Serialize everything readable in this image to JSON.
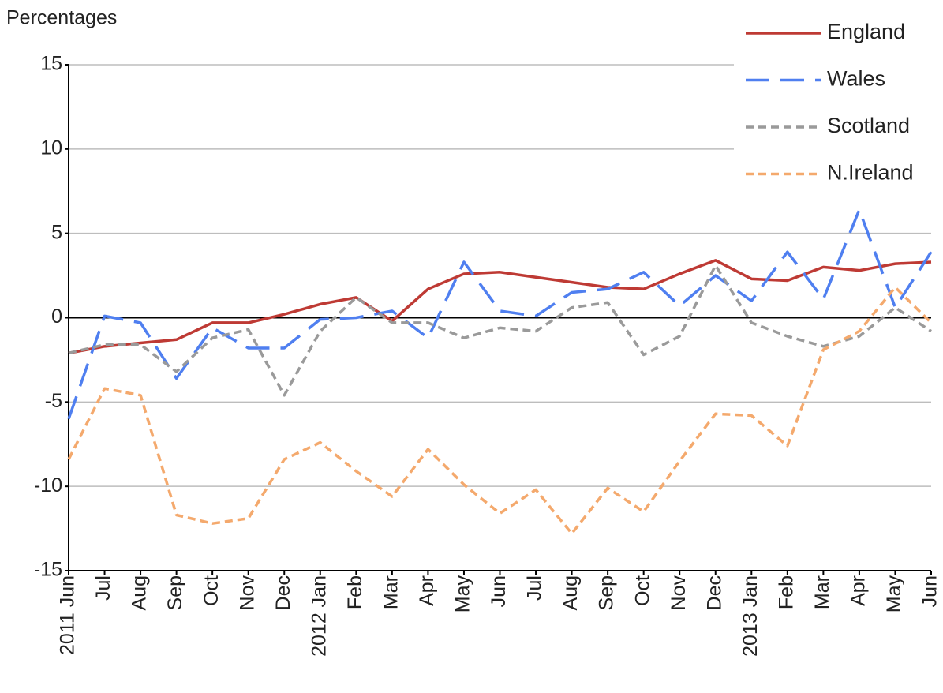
{
  "chart_data": {
    "type": "line",
    "y_label": "Percentages",
    "categories": [
      "2011 Jun",
      "Jul",
      "Aug",
      "Sep",
      "Oct",
      "Nov",
      "Dec",
      "2012 Jan",
      "Feb",
      "Mar",
      "Apr",
      "May",
      "Jun",
      "Jul",
      "Aug",
      "Sep",
      "Oct",
      "Nov",
      "Dec",
      "2013 Jan",
      "Feb",
      "Mar",
      "Apr",
      "May",
      "Jun"
    ],
    "series": [
      {
        "name": "England",
        "color": "#be3a34",
        "values": [
          -2.1,
          -1.7,
          -1.5,
          -1.3,
          -0.3,
          -0.3,
          0.2,
          0.8,
          1.2,
          -0.2,
          1.7,
          2.6,
          2.7,
          2.4,
          2.1,
          1.8,
          1.7,
          2.6,
          3.4,
          2.3,
          2.2,
          3.0,
          2.8,
          3.2,
          3.3
        ]
      },
      {
        "name": "Wales",
        "color": "#4f7ff0",
        "values": [
          -6.0,
          0.1,
          -0.3,
          -3.6,
          -0.6,
          -1.8,
          -1.8,
          -0.1,
          0.0,
          0.4,
          -1.2,
          3.3,
          0.4,
          0.1,
          1.5,
          1.7,
          2.7,
          0.7,
          2.5,
          1.0,
          3.9,
          1.1,
          6.4,
          0.6,
          3.9
        ]
      },
      {
        "name": "Scotland",
        "color": "#9a9a9a",
        "values": [
          -2.1,
          -1.6,
          -1.6,
          -3.2,
          -1.2,
          -0.7,
          -4.6,
          -0.8,
          1.2,
          -0.3,
          -0.3,
          -1.2,
          -0.6,
          -0.8,
          0.6,
          0.9,
          -2.2,
          -1.1,
          3.1,
          -0.3,
          -1.1,
          -1.7,
          -1.1,
          0.6,
          -0.8
        ]
      },
      {
        "name": "N.Ireland",
        "color": "#f4a96d",
        "values": [
          -8.4,
          -4.2,
          -4.6,
          -11.7,
          -12.2,
          -11.9,
          -8.4,
          -7.4,
          -9.1,
          -10.6,
          -7.8,
          -9.9,
          -11.6,
          -10.2,
          -12.8,
          -10.1,
          -11.5,
          -8.5,
          -5.7,
          -5.8,
          -7.6,
          -1.9,
          -0.8,
          1.8,
          -0.3
        ]
      }
    ],
    "ylim": [
      -15,
      15
    ],
    "yticks": [
      -15,
      -10,
      -5,
      0,
      5,
      10,
      15
    ],
    "grid": true,
    "legend": "top-right"
  }
}
